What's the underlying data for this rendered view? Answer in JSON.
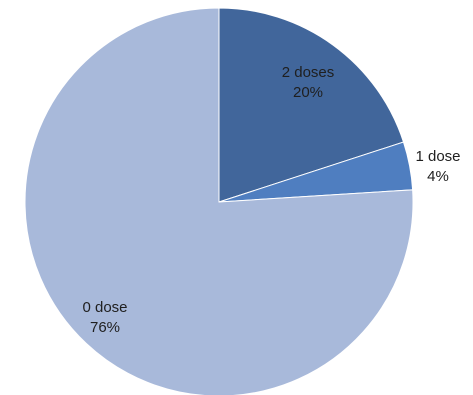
{
  "chart_data": {
    "type": "pie",
    "categories": [
      "2 doses",
      "1 dose",
      "0 dose"
    ],
    "values": [
      20,
      4,
      76
    ],
    "value_labels": [
      "20%",
      "4%",
      "76%"
    ],
    "colors": [
      "#41669b",
      "#4f7ec0",
      "#a8b9da"
    ],
    "title": "",
    "legend": "none"
  }
}
